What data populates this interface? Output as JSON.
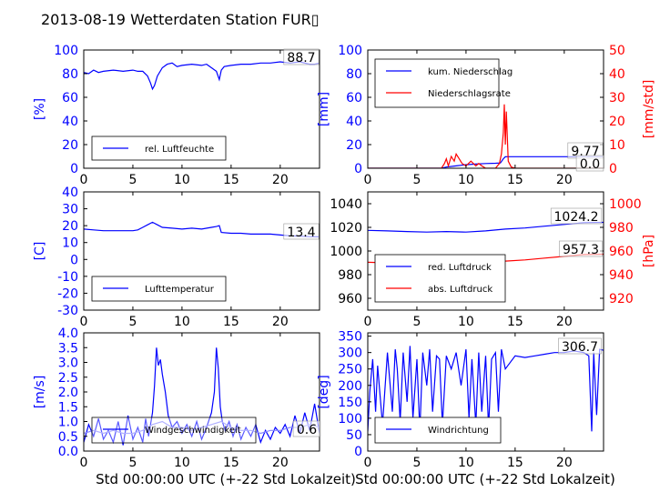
{
  "title": "2013-08-19 Wetterdaten Station FUR▯",
  "xlabel": "Std 00:00:00 UTC (+-22 Std Lokalzeit)",
  "colors": {
    "blue": "#0000ff",
    "red": "#ff0000",
    "axis": "#000000"
  },
  "chart_data": [
    {
      "id": "humidity",
      "type": "line",
      "title": "",
      "ylabel": "[%]",
      "ylabel_color": "#0000ff",
      "xlim": [
        0,
        24
      ],
      "xticks": [
        0,
        5,
        10,
        15,
        20
      ],
      "ylim": [
        0,
        100
      ],
      "yticks": [
        0,
        20,
        40,
        60,
        80,
        100
      ],
      "series": [
        {
          "name": "rel. Luftfeuchte",
          "color": "#0000ff",
          "x": [
            0,
            0.5,
            1,
            1.5,
            2,
            3,
            4,
            5,
            5.5,
            6,
            6.5,
            6.8,
            7,
            7.2,
            7.5,
            8,
            8.5,
            9,
            9.5,
            10,
            11,
            12,
            12.5,
            13,
            13.5,
            13.8,
            14,
            14.3,
            15,
            16,
            17,
            18,
            19,
            20,
            21,
            22,
            23,
            23.5,
            24
          ],
          "y": [
            81,
            80,
            83,
            81,
            82,
            83,
            82,
            83,
            82,
            82,
            78,
            72,
            67,
            70,
            78,
            85,
            88,
            89,
            86,
            87,
            88,
            87,
            88,
            85,
            82,
            75,
            83,
            86,
            87,
            88,
            88,
            89,
            89,
            90,
            89,
            90,
            88,
            88,
            89
          ]
        }
      ],
      "last_value_label": "88.7",
      "legend": {
        "position": "lower-left",
        "entries": [
          "rel. Luftfeuchte"
        ]
      }
    },
    {
      "id": "precipitation",
      "type": "line",
      "title": "",
      "ylabel": "[mm]",
      "ylabel_color": "#0000ff",
      "ylabel_right": "[mm/std]",
      "ylabel_right_color": "#ff0000",
      "xlim": [
        0,
        24
      ],
      "xticks": [
        0,
        5,
        10,
        15,
        20
      ],
      "ylim": [
        0,
        100
      ],
      "yticks": [
        0,
        20,
        40,
        60,
        80,
        100
      ],
      "ylim_right": [
        0,
        50
      ],
      "yticks_right": [
        0,
        10,
        20,
        30,
        40,
        50
      ],
      "series": [
        {
          "name": "kum. Niederschlag",
          "axis": "left",
          "color": "#0000ff",
          "x": [
            0,
            7.5,
            8,
            9,
            10,
            11,
            12,
            13,
            13.5,
            13.8,
            14,
            14.2,
            15,
            18,
            20,
            24
          ],
          "y": [
            0,
            0,
            1,
            2,
            3,
            3.5,
            4,
            4.2,
            4.5,
            8,
            9.7,
            9.77,
            9.77,
            9.77,
            9.77,
            9.77
          ]
        },
        {
          "name": "Niederschlagsrate",
          "axis": "right",
          "color": "#ff0000",
          "x": [
            0,
            7.5,
            7.8,
            8,
            8.2,
            8.5,
            8.8,
            9,
            9.3,
            9.6,
            10,
            10.5,
            11,
            11.3,
            11.6,
            12,
            12.5,
            13,
            13.4,
            13.6,
            13.8,
            13.9,
            14,
            14.1,
            14.3,
            14.6,
            15,
            18,
            20,
            22,
            24
          ],
          "y": [
            0,
            0,
            2,
            4,
            1,
            5,
            3,
            6,
            4,
            2,
            1,
            3,
            1,
            2,
            1,
            0,
            0,
            0,
            2,
            6,
            15,
            27,
            10,
            24,
            3,
            0.5,
            0,
            0,
            0,
            0,
            0
          ]
        }
      ],
      "last_value_label": "9.77",
      "last_value_label_2": "0.0",
      "legend": {
        "position": "upper-left",
        "entries": [
          "kum. Niederschlag",
          "Niederschlagsrate"
        ]
      }
    },
    {
      "id": "temperature",
      "type": "line",
      "title": "",
      "ylabel": "[C]",
      "ylabel_color": "#0000ff",
      "xlim": [
        0,
        24
      ],
      "xticks": [
        0,
        5,
        10,
        15,
        20
      ],
      "ylim": [
        -30,
        40
      ],
      "yticks": [
        -30,
        -20,
        -10,
        0,
        10,
        20,
        30,
        40
      ],
      "series": [
        {
          "name": "Lufttemperatur",
          "color": "#0000ff",
          "x": [
            0,
            1,
            2,
            3,
            4,
            5,
            5.5,
            6,
            6.5,
            7,
            7.5,
            8,
            9,
            10,
            11,
            12,
            13,
            13.5,
            13.8,
            14,
            15,
            16,
            17,
            18,
            19,
            20,
            21,
            22,
            23,
            24
          ],
          "y": [
            18,
            17.5,
            17,
            17,
            17,
            17,
            17.5,
            19,
            20.5,
            22,
            20.5,
            19,
            18.5,
            18,
            18.5,
            18,
            19,
            19.5,
            20,
            16,
            15.5,
            15.5,
            15,
            15,
            15,
            14.5,
            14,
            13.8,
            13.5,
            13.4
          ]
        }
      ],
      "last_value_label": "13.4",
      "legend": {
        "position": "lower-left",
        "entries": [
          "Lufttemperatur"
        ]
      }
    },
    {
      "id": "pressure",
      "type": "line",
      "title": "",
      "ylabel": "",
      "ylabel_right": "[hPa]",
      "ylabel_right_color": "#ff0000",
      "xlim": [
        0,
        24
      ],
      "xticks": [
        0,
        5,
        10,
        15,
        20
      ],
      "ylim": [
        950,
        1050
      ],
      "yticks": [
        960,
        980,
        1000,
        1020,
        1040
      ],
      "ylim_right": [
        910,
        1010
      ],
      "yticks_right": [
        920,
        940,
        960,
        980,
        1000
      ],
      "series": [
        {
          "name": "red. Luftdruck",
          "axis": "left",
          "color": "#0000ff",
          "x": [
            0,
            2,
            4,
            6,
            8,
            10,
            12,
            14,
            16,
            18,
            20,
            22,
            24
          ],
          "y": [
            1017.5,
            1017,
            1016.5,
            1016,
            1016.5,
            1016,
            1017,
            1018.5,
            1019.5,
            1021,
            1022.5,
            1024,
            1024.2
          ]
        },
        {
          "name": "abs. Luftdruck",
          "axis": "right",
          "color": "#ff0000",
          "x": [
            0,
            2,
            4,
            6,
            8,
            10,
            12,
            14,
            16,
            18,
            20,
            22,
            24
          ],
          "y": [
            950.5,
            950,
            949.5,
            949,
            949.5,
            949,
            950,
            951.5,
            952.5,
            954,
            955.5,
            957,
            957.3
          ]
        }
      ],
      "last_value_label": "1024.2",
      "last_value_label_2": "957.3",
      "legend": {
        "position": "lower-left",
        "entries": [
          "red. Luftdruck",
          "abs. Luftdruck"
        ]
      }
    },
    {
      "id": "windspeed",
      "type": "line",
      "title": "",
      "ylabel": "[m/s]",
      "ylabel_color": "#0000ff",
      "xlim": [
        0,
        24
      ],
      "xticks": [
        0,
        5,
        10,
        15,
        20
      ],
      "ylim": [
        0,
        4
      ],
      "yticks": [
        0.0,
        0.5,
        1.0,
        1.5,
        2.0,
        2.5,
        3.0,
        3.5,
        4.0
      ],
      "series": [
        {
          "name": "Windgeschwindigkeit",
          "color": "#0000ff",
          "x": [
            0,
            0.5,
            1,
            1.5,
            2,
            2.5,
            3,
            3.5,
            4,
            4.5,
            5,
            5.5,
            6,
            6.3,
            6.6,
            7,
            7.2,
            7.4,
            7.6,
            7.8,
            8,
            8.3,
            8.6,
            9,
            9.5,
            10,
            10.5,
            11,
            11.5,
            12,
            12.5,
            13,
            13.3,
            13.5,
            13.7,
            13.9,
            14.1,
            14.4,
            14.8,
            15.2,
            15.6,
            16,
            16.5,
            17,
            17.5,
            18,
            18.5,
            19,
            19.5,
            20,
            20.5,
            21,
            21.5,
            22,
            22.5,
            23,
            23.5,
            24
          ],
          "y": [
            0.3,
            0.9,
            0.5,
            1.1,
            0.4,
            0.7,
            0.3,
            1.0,
            0.2,
            1.2,
            0.4,
            0.8,
            0.3,
            1.1,
            0.5,
            1.3,
            2.2,
            3.5,
            2.9,
            3.1,
            2.6,
            2.0,
            1.2,
            0.8,
            1.0,
            0.6,
            0.9,
            0.5,
            1.0,
            0.4,
            0.8,
            1.3,
            2.0,
            3.5,
            2.8,
            1.5,
            1.0,
            0.7,
            1.0,
            0.5,
            0.9,
            0.4,
            0.8,
            0.5,
            0.9,
            0.3,
            0.7,
            0.4,
            0.8,
            0.6,
            0.9,
            0.5,
            1.2,
            0.6,
            1.3,
            0.7,
            1.6,
            0.6
          ]
        },
        {
          "name": "",
          "color": "#8888ff",
          "x": [
            0,
            1,
            2,
            3,
            4,
            5,
            6,
            7,
            8,
            9,
            10,
            11,
            12,
            13,
            14,
            15,
            16,
            17,
            18,
            19,
            20,
            21,
            22,
            23,
            24
          ],
          "y": [
            0.6,
            0.7,
            0.6,
            0.7,
            0.6,
            0.6,
            0.7,
            0.9,
            1.0,
            0.8,
            0.8,
            0.7,
            0.8,
            0.9,
            1.0,
            0.8,
            0.7,
            0.7,
            0.6,
            0.7,
            0.7,
            0.8,
            0.8,
            0.9,
            0.8
          ]
        }
      ],
      "last_value_label": "0.6",
      "legend": {
        "position": "lower-left",
        "entries": [
          "Windgeschwindigkeit"
        ]
      }
    },
    {
      "id": "winddirection",
      "type": "line",
      "title": "",
      "ylabel": "[deg]",
      "ylabel_color": "#0000ff",
      "xlim": [
        0,
        24
      ],
      "xticks": [
        0,
        5,
        10,
        15,
        20
      ],
      "ylim": [
        0,
        360
      ],
      "yticks": [
        0,
        50,
        100,
        150,
        200,
        250,
        300,
        350
      ],
      "series": [
        {
          "name": "Windrichtung",
          "color": "#0000ff",
          "x": [
            0,
            0.2,
            0.5,
            0.8,
            1,
            1.5,
            2,
            2.5,
            2.8,
            3,
            3.3,
            3.6,
            4,
            4.3,
            4.6,
            5,
            5.3,
            5.6,
            6,
            6.3,
            6.6,
            7,
            7.3,
            7.6,
            8,
            8.5,
            9,
            9.5,
            10,
            10.3,
            10.6,
            11,
            11.3,
            11.6,
            12,
            12.3,
            12.6,
            13,
            13.3,
            13.6,
            14,
            15,
            16,
            17,
            18,
            19,
            20,
            21,
            22,
            22.5,
            22.8,
            23,
            23.3,
            23.6,
            24
          ],
          "y": [
            60,
            180,
            280,
            120,
            260,
            80,
            300,
            120,
            310,
            250,
            90,
            300,
            150,
            320,
            100,
            280,
            60,
            300,
            200,
            310,
            120,
            290,
            280,
            80,
            290,
            250,
            300,
            200,
            310,
            100,
            280,
            80,
            300,
            120,
            290,
            70,
            280,
            300,
            120,
            310,
            250,
            290,
            285,
            290,
            295,
            300,
            300,
            305,
            300,
            290,
            60,
            300,
            110,
            310,
            306.7
          ]
        }
      ],
      "last_value_label": "306.7",
      "legend": {
        "position": "lower-left",
        "entries": [
          "Windrichtung"
        ]
      }
    }
  ]
}
